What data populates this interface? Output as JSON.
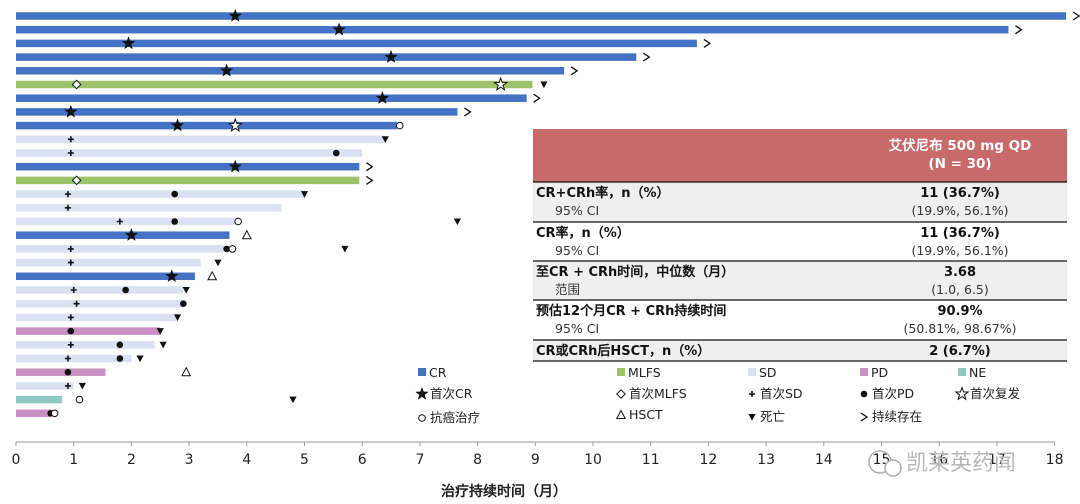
{
  "chart_data": {
    "type": "bar",
    "orientation": "horizontal",
    "xlabel": "治疗持续时间（月）",
    "xlim": [
      0,
      18
    ],
    "x_ticks": [
      0,
      1,
      2,
      3,
      4,
      5,
      6,
      7,
      8,
      9,
      10,
      11,
      12,
      13,
      14,
      15,
      16,
      17,
      18
    ],
    "colors": {
      "CR": "#4472c4",
      "MLFS": "#9dc36a",
      "SD": "#d9e1f2",
      "PD": "#c88fc2",
      "NE": "#8fc7c4"
    },
    "rows": [
      {
        "status": "CR",
        "value": 18.2,
        "markers": [
          {
            "type": "first_cr",
            "x": 3.8
          }
        ],
        "ongoing": true
      },
      {
        "status": "CR",
        "value": 17.2,
        "markers": [
          {
            "type": "first_cr",
            "x": 5.6
          }
        ],
        "ongoing": true
      },
      {
        "status": "CR",
        "value": 11.8,
        "markers": [
          {
            "type": "first_cr",
            "x": 1.95
          }
        ],
        "ongoing": true
      },
      {
        "status": "CR",
        "value": 10.75,
        "markers": [
          {
            "type": "first_cr",
            "x": 6.5
          }
        ],
        "ongoing": true
      },
      {
        "status": "CR",
        "value": 9.5,
        "markers": [
          {
            "type": "first_cr",
            "x": 3.65
          }
        ],
        "ongoing": true
      },
      {
        "status": "MLFS",
        "value": 8.95,
        "markers": [
          {
            "type": "first_mlfs",
            "x": 1.05
          },
          {
            "type": "first_relapse",
            "x": 8.4
          },
          {
            "type": "death",
            "x": 9.15
          }
        ],
        "ongoing": false
      },
      {
        "status": "CR",
        "value": 8.85,
        "markers": [
          {
            "type": "first_cr",
            "x": 6.35
          }
        ],
        "ongoing": true
      },
      {
        "status": "CR",
        "value": 7.65,
        "markers": [
          {
            "type": "first_cr",
            "x": 0.95
          }
        ],
        "ongoing": true
      },
      {
        "status": "CR",
        "value": 6.6,
        "markers": [
          {
            "type": "first_cr",
            "x": 2.8
          },
          {
            "type": "first_relapse",
            "x": 3.8
          },
          {
            "type": "anticancer",
            "x": 6.65
          }
        ],
        "ongoing": false
      },
      {
        "status": "SD",
        "value": 6.4,
        "markers": [
          {
            "type": "first_sd",
            "x": 0.95
          },
          {
            "type": "death",
            "x": 6.4
          }
        ],
        "ongoing": false
      },
      {
        "status": "SD",
        "value": 6.0,
        "markers": [
          {
            "type": "first_sd",
            "x": 0.95
          },
          {
            "type": "first_pd",
            "x": 5.55
          }
        ],
        "ongoing": false
      },
      {
        "status": "CR",
        "value": 5.95,
        "markers": [
          {
            "type": "first_cr",
            "x": 3.8
          }
        ],
        "ongoing": true
      },
      {
        "status": "MLFS",
        "value": 5.95,
        "markers": [
          {
            "type": "first_mlfs",
            "x": 1.05
          }
        ],
        "ongoing": true
      },
      {
        "status": "SD",
        "value": 5.0,
        "markers": [
          {
            "type": "first_sd",
            "x": 0.9
          },
          {
            "type": "first_pd",
            "x": 2.75
          },
          {
            "type": "death",
            "x": 5.0
          }
        ],
        "ongoing": false
      },
      {
        "status": "SD",
        "value": 4.6,
        "markers": [
          {
            "type": "first_sd",
            "x": 0.9
          }
        ],
        "ongoing": false
      },
      {
        "status": "SD",
        "value": 3.8,
        "markers": [
          {
            "type": "first_sd",
            "x": 1.8
          },
          {
            "type": "first_pd",
            "x": 2.75
          },
          {
            "type": "anticancer",
            "x": 3.85
          },
          {
            "type": "death",
            "x": 7.65
          }
        ],
        "ongoing": false
      },
      {
        "status": "CR",
        "value": 3.7,
        "markers": [
          {
            "type": "first_cr",
            "x": 2.0
          },
          {
            "type": "hsct",
            "x": 4.0
          }
        ],
        "ongoing": false
      },
      {
        "status": "SD",
        "value": 3.6,
        "markers": [
          {
            "type": "first_sd",
            "x": 0.95
          },
          {
            "type": "first_pd",
            "x": 3.65
          },
          {
            "type": "anticancer",
            "x": 3.75
          },
          {
            "type": "death",
            "x": 5.7
          }
        ],
        "ongoing": false
      },
      {
        "status": "SD",
        "value": 3.2,
        "markers": [
          {
            "type": "first_sd",
            "x": 0.95
          },
          {
            "type": "death",
            "x": 3.5
          }
        ],
        "ongoing": false
      },
      {
        "status": "CR",
        "value": 3.1,
        "markers": [
          {
            "type": "first_cr",
            "x": 2.7
          },
          {
            "type": "hsct",
            "x": 3.4
          }
        ],
        "ongoing": false
      },
      {
        "status": "SD",
        "value": 2.9,
        "markers": [
          {
            "type": "first_sd",
            "x": 1.0
          },
          {
            "type": "first_pd",
            "x": 1.9
          },
          {
            "type": "death",
            "x": 2.95
          }
        ],
        "ongoing": false
      },
      {
        "status": "SD",
        "value": 2.9,
        "markers": [
          {
            "type": "first_sd",
            "x": 1.05
          },
          {
            "type": "first_pd",
            "x": 2.9
          }
        ],
        "ongoing": false
      },
      {
        "status": "SD",
        "value": 2.8,
        "markers": [
          {
            "type": "first_sd",
            "x": 0.95
          },
          {
            "type": "death",
            "x": 2.8
          }
        ],
        "ongoing": false
      },
      {
        "status": "PD",
        "value": 2.5,
        "markers": [
          {
            "type": "first_pd",
            "x": 0.95
          },
          {
            "type": "death",
            "x": 2.5
          }
        ],
        "ongoing": false
      },
      {
        "status": "SD",
        "value": 2.4,
        "markers": [
          {
            "type": "first_sd",
            "x": 0.95
          },
          {
            "type": "first_pd",
            "x": 1.8
          },
          {
            "type": "death",
            "x": 2.55
          }
        ],
        "ongoing": false
      },
      {
        "status": "SD",
        "value": 2.0,
        "markers": [
          {
            "type": "first_sd",
            "x": 0.9
          },
          {
            "type": "first_pd",
            "x": 1.8
          },
          {
            "type": "death",
            "x": 2.15
          }
        ],
        "ongoing": false
      },
      {
        "status": "PD",
        "value": 1.55,
        "markers": [
          {
            "type": "first_pd",
            "x": 0.9
          },
          {
            "type": "hsct",
            "x": 2.95
          }
        ],
        "ongoing": false
      },
      {
        "status": "SD",
        "value": 1.0,
        "markers": [
          {
            "type": "first_sd",
            "x": 0.9
          },
          {
            "type": "death",
            "x": 1.15
          }
        ],
        "ongoing": false
      },
      {
        "status": "NE",
        "value": 0.8,
        "markers": [
          {
            "type": "anticancer",
            "x": 1.1
          },
          {
            "type": "death",
            "x": 4.8
          }
        ],
        "ongoing": false
      },
      {
        "status": "PD",
        "value": 0.6,
        "markers": [
          {
            "type": "first_pd",
            "x": 0.6
          },
          {
            "type": "anticancer",
            "x": 0.67
          }
        ],
        "ongoing": false
      }
    ],
    "legend": {
      "CR": "CR",
      "MLFS": "MLFS",
      "SD": "SD",
      "PD": "PD",
      "NE": "NE",
      "first_cr": "首次CR",
      "first_mlfs": "首次MLFS",
      "first_sd": "首次SD",
      "first_pd": "首次PD",
      "first_relapse": "首次复发",
      "anticancer": "抗癌治疗",
      "hsct": "HSCT",
      "death": "死亡",
      "ongoing": "持续存在"
    }
  },
  "summary_table": {
    "header": "艾伏尼布 500 mg QD\n(N = 30)",
    "rows": [
      {
        "label": "CR+CRh率，n（%）",
        "value": "11 (36.7%)",
        "sub_label": "95% CI",
        "sub_value": "(19.9%, 56.1%)"
      },
      {
        "label": "CR率，n（%）",
        "value": "11 (36.7%)",
        "sub_label": "95% CI",
        "sub_value": "(19.9%, 56.1%)"
      },
      {
        "label": "至CR + CRh时间，中位数（月）",
        "value": "3.68",
        "sub_label": "范围",
        "sub_value": "(1.0, 6.5)"
      },
      {
        "label": "预估12个月CR + CRh持续时间",
        "value": "90.9%",
        "sub_label": "95% CI",
        "sub_value": "(50.81%, 98.67%)"
      },
      {
        "label": "CR或CRh后HSCT，n（%）",
        "value": "2 (6.7%)"
      }
    ]
  },
  "watermark": "凯莱英药闻"
}
